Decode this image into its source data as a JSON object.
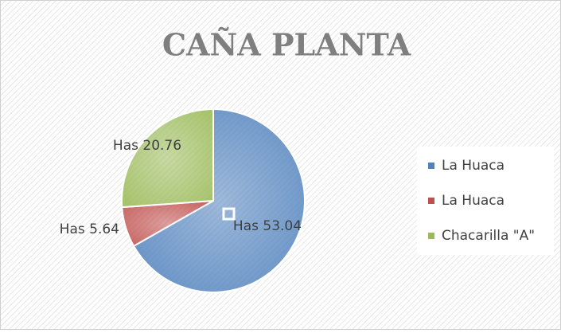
{
  "chart_data": {
    "type": "pie",
    "title": "CAÑA PLANTA",
    "categories": [
      "La Huaca",
      "La Huaca",
      "Chacarilla \"A\""
    ],
    "values": [
      53.04,
      5.64,
      20.76
    ],
    "value_labels": [
      "Has 53.04",
      "Has 5.64",
      "Has 20.76"
    ],
    "colors": [
      "#4f81bd",
      "#c0504d",
      "#9bbb59"
    ],
    "legend": "right"
  }
}
